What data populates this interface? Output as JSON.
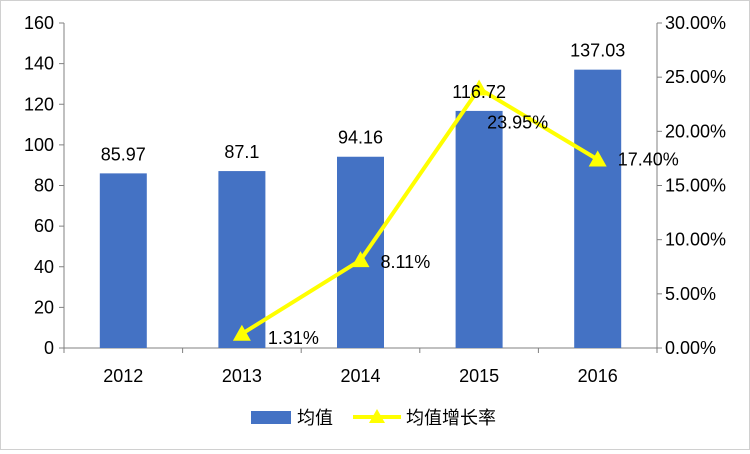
{
  "chart_data": {
    "type": "bar",
    "categories": [
      "2012",
      "2013",
      "2014",
      "2015",
      "2016"
    ],
    "series": [
      {
        "name": "均值",
        "type": "bar",
        "axis": "left",
        "values": [
          85.97,
          87.1,
          94.16,
          116.72,
          137.03
        ],
        "labels": [
          "85.97",
          "87.1",
          "94.16",
          "116.72",
          "137.03"
        ],
        "color": "#4472C4"
      },
      {
        "name": "均值增长率",
        "type": "line",
        "axis": "right",
        "marker": "triangle",
        "values": [
          null,
          1.31,
          8.11,
          23.95,
          17.4
        ],
        "labels": [
          "",
          "1.31%",
          "8.11%",
          "23.95%",
          "17.40%"
        ],
        "color": "#FFFF00"
      }
    ],
    "y_left": {
      "ylim": [
        0,
        160
      ],
      "ticks": [
        "0",
        "20",
        "40",
        "60",
        "80",
        "100",
        "120",
        "140",
        "160"
      ]
    },
    "y_right": {
      "ylim": [
        0,
        30
      ],
      "ticks": [
        "0.00%",
        "5.00%",
        "10.00%",
        "15.00%",
        "20.00%",
        "25.00%",
        "30.00%"
      ]
    },
    "grid": false,
    "legend_position": "bottom"
  }
}
